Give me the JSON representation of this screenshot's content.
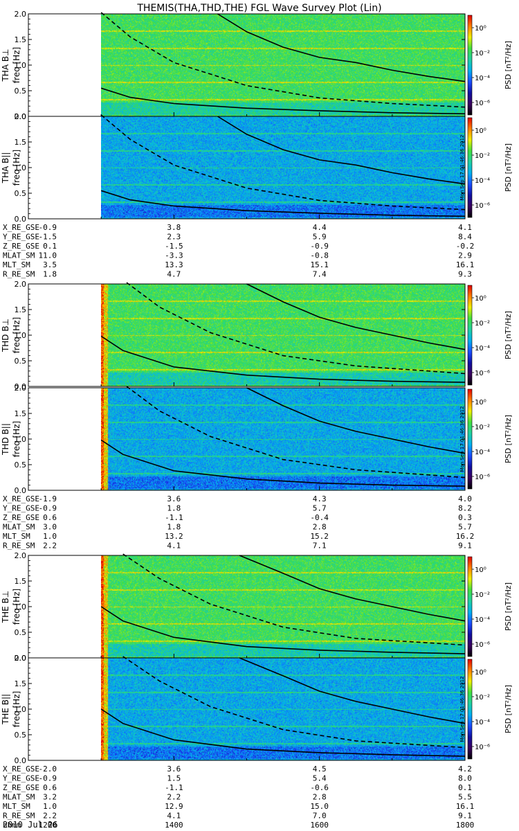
{
  "title": "THEMIS(THA,THD,THE) FGL Wave Survey Plot (Lin)",
  "panels": [
    {
      "probe_label": "THA B⊥",
      "freq_label": "freq [Hz]",
      "stamp": ""
    },
    {
      "probe_label": "THA B||",
      "freq_label": "freq [Hz]",
      "stamp": "Mon Sep 17 01:46:36 2012"
    },
    {
      "probe_label": "THD B⊥",
      "freq_label": "freq [Hz]",
      "stamp": ""
    },
    {
      "probe_label": "THD B||",
      "freq_label": "freq [Hz]",
      "stamp": "Mon Sep 17 01:46:36 2012"
    },
    {
      "probe_label": "THE B⊥",
      "freq_label": "freq [Hz]",
      "stamp": ""
    },
    {
      "probe_label": "THE B||",
      "freq_label": "freq [Hz]",
      "stamp": "Mon Sep 17 01:46:36 2012"
    }
  ],
  "colorbar": {
    "label": "PSD [nT²/Hz]",
    "tick_labels": [
      "10⁰",
      "10⁻²",
      "10⁻⁴",
      "10⁻⁶"
    ]
  },
  "ephemeris": [
    {
      "rows": [
        {
          "name": "X_RE_GSE",
          "values": [
            "-0.9",
            "3.8",
            "4.4",
            "4.1"
          ]
        },
        {
          "name": "Y_RE_GSE",
          "values": [
            "-1.5",
            "2.3",
            "5.9",
            "8.4"
          ]
        },
        {
          "name": "Z_RE_GSE",
          "values": [
            "0.1",
            "-1.5",
            "-0.9",
            "-0.2"
          ]
        },
        {
          "name": "MLAT_SM",
          "values": [
            "11.0",
            "-3.3",
            "-0.8",
            "2.9"
          ]
        },
        {
          "name": "MLT_SM",
          "values": [
            "3.5",
            "13.3",
            "15.1",
            "16.1"
          ]
        },
        {
          "name": "R_RE_SM",
          "values": [
            "1.8",
            "4.7",
            "7.4",
            "9.3"
          ]
        }
      ]
    },
    {
      "rows": [
        {
          "name": "X_RE_GSE",
          "values": [
            "-1.9",
            "3.6",
            "4.3",
            "4.0"
          ]
        },
        {
          "name": "Y_RE_GSE",
          "values": [
            "-0.9",
            "1.8",
            "5.7",
            "8.2"
          ]
        },
        {
          "name": "Z_RE_GSE",
          "values": [
            "0.6",
            "-1.1",
            "-0.4",
            "0.3"
          ]
        },
        {
          "name": "MLAT_SM",
          "values": [
            "3.0",
            "1.8",
            "2.8",
            "5.7"
          ]
        },
        {
          "name": "MLT_SM",
          "values": [
            "1.0",
            "13.2",
            "15.2",
            "16.2"
          ]
        },
        {
          "name": "R_RE_SM",
          "values": [
            "2.2",
            "4.1",
            "7.1",
            "9.1"
          ]
        }
      ]
    },
    {
      "rows": [
        {
          "name": "X_RE_GSE",
          "values": [
            "-2.0",
            "3.6",
            "4.5",
            "4.2"
          ]
        },
        {
          "name": "Y_RE_GSE",
          "values": [
            "-0.9",
            "1.5",
            "5.4",
            "8.0"
          ]
        },
        {
          "name": "Z_RE_GSE",
          "values": [
            "0.6",
            "-1.1",
            "-0.6",
            "0.1"
          ]
        },
        {
          "name": "MLAT_SM",
          "values": [
            "3.2",
            "2.2",
            "2.8",
            "5.5"
          ]
        },
        {
          "name": "MLT_SM",
          "values": [
            "1.0",
            "12.9",
            "15.0",
            "16.1"
          ]
        },
        {
          "name": "R_RE_SM",
          "values": [
            "2.2",
            "4.1",
            "7.0",
            "9.1"
          ]
        },
        {
          "name": "hhmm",
          "values": [
            "1200",
            "1400",
            "1600",
            "1800"
          ]
        }
      ]
    }
  ],
  "date_label": "2010 Jul 26",
  "chart_data": {
    "type": "heatmap",
    "title": "THEMIS(THA,THD,THE) FGL Wave Survey Plot (Lin)",
    "x_axis": {
      "label": "hhmm",
      "ticks": [
        "1200",
        "1400",
        "1600",
        "1800"
      ],
      "range": [
        "12:00",
        "18:00"
      ]
    },
    "y_axis": {
      "label": "freq [Hz]",
      "range": [
        0.0,
        2.0
      ],
      "ticks": [
        "0.0",
        "0.5",
        "1.0",
        "1.5",
        "2.0"
      ]
    },
    "colorbar": {
      "label": "PSD [nT²/Hz]",
      "scale": "log",
      "range": [
        1e-07,
        10
      ],
      "ticks": [
        1,
        0.01,
        0.0001,
        1e-06
      ]
    },
    "colormap": [
      "#000000",
      "#3a0060",
      "#1010a0",
      "#1a4cff",
      "#00b0f0",
      "#20d0a0",
      "#40e040",
      "#f0f000",
      "#ff8000",
      "#e00000"
    ],
    "data_start_time": "13:00",
    "series_lines": [
      "solid curve",
      "dashed curve",
      "lower solid curve"
    ],
    "panels": [
      {
        "probe": "THA",
        "component": "B⊥",
        "solid_knots": [
          [
            13.0,
            0.55
          ],
          [
            13.4,
            0.37
          ],
          [
            14.0,
            0.25
          ],
          [
            15.0,
            0.16
          ],
          [
            16.0,
            0.11
          ],
          [
            17.0,
            0.07
          ],
          [
            18.0,
            0.05
          ]
        ],
        "dashed_knots": [
          [
            13.0,
            2.1
          ],
          [
            13.4,
            1.55
          ],
          [
            14.0,
            1.05
          ],
          [
            15.0,
            0.6
          ],
          [
            16.0,
            0.36
          ],
          [
            17.0,
            0.25
          ],
          [
            18.0,
            0.18
          ]
        ],
        "upper_knots": [
          [
            14.6,
            2.0
          ],
          [
            15.0,
            1.65
          ],
          [
            15.5,
            1.35
          ],
          [
            16.0,
            1.15
          ],
          [
            16.5,
            1.05
          ],
          [
            17.0,
            0.9
          ],
          [
            17.5,
            0.78
          ],
          [
            18.0,
            0.68
          ]
        ],
        "base_level": 0.012,
        "low_band_level": 0.003
      },
      {
        "probe": "THA",
        "component": "B||",
        "solid_knots": [
          [
            13.0,
            0.55
          ],
          [
            13.4,
            0.37
          ],
          [
            14.0,
            0.25
          ],
          [
            15.0,
            0.16
          ],
          [
            16.0,
            0.11
          ],
          [
            17.0,
            0.07
          ],
          [
            18.0,
            0.05
          ]
        ],
        "dashed_knots": [
          [
            13.0,
            2.1
          ],
          [
            13.4,
            1.55
          ],
          [
            14.0,
            1.05
          ],
          [
            15.0,
            0.6
          ],
          [
            16.0,
            0.36
          ],
          [
            17.0,
            0.25
          ],
          [
            18.0,
            0.18
          ]
        ],
        "upper_knots": [
          [
            14.6,
            2.0
          ],
          [
            15.0,
            1.65
          ],
          [
            15.5,
            1.35
          ],
          [
            16.0,
            1.15
          ],
          [
            16.5,
            1.05
          ],
          [
            17.0,
            0.9
          ],
          [
            17.5,
            0.78
          ],
          [
            18.0,
            0.68
          ]
        ],
        "base_level": 0.0004,
        "low_band_level": 0.0001
      },
      {
        "probe": "THD",
        "component": "B⊥",
        "solid_knots": [
          [
            13.0,
            0.98
          ],
          [
            13.3,
            0.7
          ],
          [
            14.0,
            0.38
          ],
          [
            15.0,
            0.22
          ],
          [
            16.0,
            0.14
          ],
          [
            17.0,
            0.1
          ],
          [
            18.0,
            0.08
          ]
        ],
        "dashed_knots": [
          [
            13.35,
            2.1
          ],
          [
            13.8,
            1.55
          ],
          [
            14.5,
            1.05
          ],
          [
            15.5,
            0.6
          ],
          [
            16.5,
            0.4
          ],
          [
            18.0,
            0.25
          ]
        ],
        "upper_knots": [
          [
            15.0,
            2.0
          ],
          [
            15.5,
            1.65
          ],
          [
            16.0,
            1.35
          ],
          [
            16.5,
            1.15
          ],
          [
            17.0,
            1.0
          ],
          [
            17.5,
            0.85
          ],
          [
            18.0,
            0.72
          ]
        ],
        "base_level": 0.012,
        "low_band_level": 0.002
      },
      {
        "probe": "THD",
        "component": "B||",
        "solid_knots": [
          [
            13.0,
            0.98
          ],
          [
            13.3,
            0.7
          ],
          [
            14.0,
            0.38
          ],
          [
            15.0,
            0.22
          ],
          [
            16.0,
            0.14
          ],
          [
            17.0,
            0.1
          ],
          [
            18.0,
            0.08
          ]
        ],
        "dashed_knots": [
          [
            13.35,
            2.1
          ],
          [
            13.8,
            1.55
          ],
          [
            14.5,
            1.05
          ],
          [
            15.5,
            0.6
          ],
          [
            16.5,
            0.4
          ],
          [
            18.0,
            0.25
          ]
        ],
        "upper_knots": [
          [
            15.0,
            2.0
          ],
          [
            15.5,
            1.65
          ],
          [
            16.0,
            1.35
          ],
          [
            16.5,
            1.15
          ],
          [
            17.0,
            1.0
          ],
          [
            17.5,
            0.85
          ],
          [
            18.0,
            0.72
          ]
        ],
        "base_level": 0.0004,
        "low_band_level": 0.0001
      },
      {
        "probe": "THE",
        "component": "B⊥",
        "solid_knots": [
          [
            13.0,
            1.0
          ],
          [
            13.3,
            0.72
          ],
          [
            14.0,
            0.4
          ],
          [
            15.0,
            0.22
          ],
          [
            16.0,
            0.15
          ],
          [
            17.0,
            0.11
          ],
          [
            18.0,
            0.08
          ]
        ],
        "dashed_knots": [
          [
            13.3,
            2.1
          ],
          [
            13.8,
            1.55
          ],
          [
            14.5,
            1.05
          ],
          [
            15.5,
            0.6
          ],
          [
            16.5,
            0.38
          ],
          [
            18.0,
            0.25
          ]
        ],
        "upper_knots": [
          [
            14.9,
            2.0
          ],
          [
            15.5,
            1.65
          ],
          [
            16.0,
            1.35
          ],
          [
            16.5,
            1.15
          ],
          [
            17.0,
            1.0
          ],
          [
            17.5,
            0.85
          ],
          [
            18.0,
            0.72
          ]
        ],
        "base_level": 0.012,
        "low_band_level": 0.002
      },
      {
        "probe": "THE",
        "component": "B||",
        "solid_knots": [
          [
            13.0,
            1.0
          ],
          [
            13.3,
            0.72
          ],
          [
            14.0,
            0.4
          ],
          [
            15.0,
            0.22
          ],
          [
            16.0,
            0.15
          ],
          [
            17.0,
            0.11
          ],
          [
            18.0,
            0.08
          ]
        ],
        "dashed_knots": [
          [
            13.3,
            2.1
          ],
          [
            13.8,
            1.55
          ],
          [
            14.5,
            1.05
          ],
          [
            15.5,
            0.6
          ],
          [
            16.5,
            0.38
          ],
          [
            18.0,
            0.25
          ]
        ],
        "upper_knots": [
          [
            14.9,
            2.0
          ],
          [
            15.5,
            1.65
          ],
          [
            16.0,
            1.35
          ],
          [
            16.5,
            1.15
          ],
          [
            17.0,
            1.0
          ],
          [
            17.5,
            0.85
          ],
          [
            18.0,
            0.72
          ]
        ],
        "base_level": 0.0004,
        "low_band_level": 0.0001
      }
    ]
  }
}
